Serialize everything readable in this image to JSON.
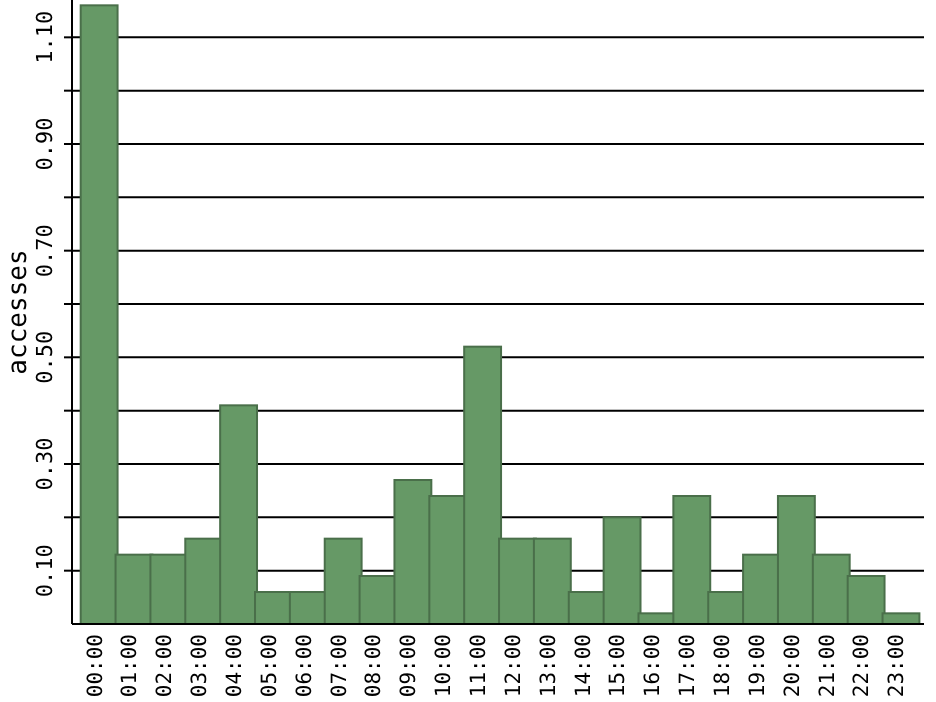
{
  "chart_data": {
    "type": "bar",
    "ylabel": "accesses",
    "categories": [
      "00:00",
      "01:00",
      "02:00",
      "03:00",
      "04:00",
      "05:00",
      "06:00",
      "07:00",
      "08:00",
      "09:00",
      "10:00",
      "11:00",
      "12:00",
      "13:00",
      "14:00",
      "15:00",
      "16:00",
      "17:00",
      "18:00",
      "19:00",
      "20:00",
      "21:00",
      "22:00",
      "23:00"
    ],
    "values": [
      1.16,
      0.13,
      0.13,
      0.16,
      0.41,
      0.06,
      0.06,
      0.16,
      0.09,
      0.27,
      0.24,
      0.52,
      0.16,
      0.16,
      0.06,
      0.2,
      0.02,
      0.24,
      0.06,
      0.13,
      0.24,
      0.13,
      0.09,
      0.02
    ],
    "color": "#669966",
    "ylim": [
      0,
      1.17
    ],
    "yticks": [
      {
        "value": 0.1,
        "label": "0.10"
      },
      {
        "value": 0.2,
        "label": null
      },
      {
        "value": 0.3,
        "label": "0.30"
      },
      {
        "value": 0.4,
        "label": null
      },
      {
        "value": 0.5,
        "label": "0.50"
      },
      {
        "value": 0.6,
        "label": null
      },
      {
        "value": 0.7,
        "label": "0.70"
      },
      {
        "value": 0.8,
        "label": null
      },
      {
        "value": 0.9,
        "label": "0.90"
      },
      {
        "value": 1.0,
        "label": null
      },
      {
        "value": 1.1,
        "label": "1.10"
      }
    ],
    "grid": "y"
  }
}
